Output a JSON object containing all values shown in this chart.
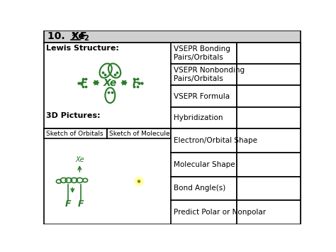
{
  "title_prefix": "10.  *",
  "title_xe": "Xe",
  "title_suffix": "F",
  "title_sub": "2",
  "bg_color": "#ffffff",
  "title_bg": "#d0d0d0",
  "border_color": "#000000",
  "green": "#2a7a2a",
  "row_labels_top": [
    "VSEPR Bonding\nPairs/Orbitals",
    "VSEPR Nonbonding\nPairs/Orbitals",
    "VSEPR Formula",
    "Hybridization"
  ],
  "row_labels_bottom": [
    "Electron/Orbital Shape",
    "Molecular Shape",
    "Bond Angle(s)",
    "Predict Polar or Nonpolar"
  ],
  "label_lewis": "Lewis Structure:",
  "label_3d": "3D Pictures:",
  "label_orbitals": "Sketch of Orbitals",
  "label_molecule": "Sketch of Molecule",
  "figsize": [
    4.74,
    3.55
  ],
  "dpi": 100
}
